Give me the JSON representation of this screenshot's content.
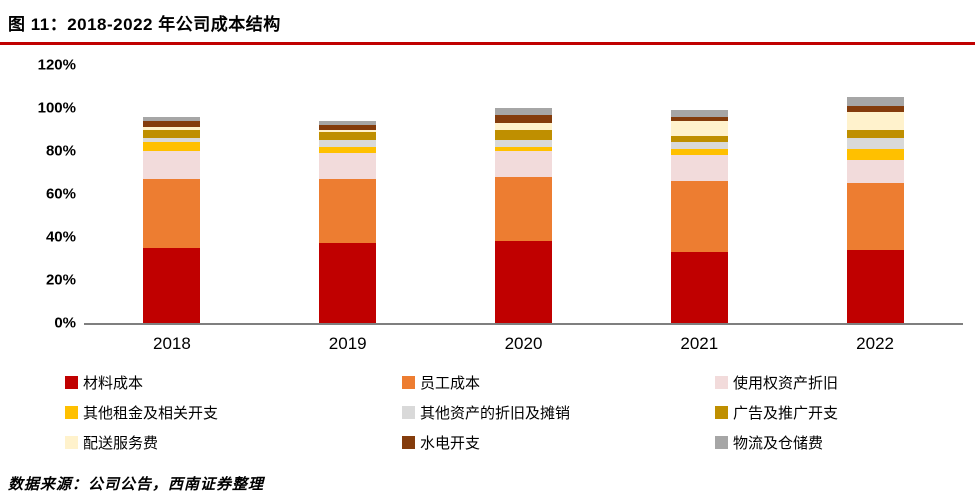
{
  "header": {
    "title": "图 11：2018-2022 年公司成本结构",
    "accent_color": "#c00000"
  },
  "footer": {
    "source": "数据来源：公司公告，西南证券整理"
  },
  "chart_data": {
    "type": "bar",
    "stacked": true,
    "title": "2018-2022 年公司成本结构",
    "categories": [
      "2018",
      "2019",
      "2020",
      "2021",
      "2022"
    ],
    "series": [
      {
        "name": "材料成本",
        "color": "#c00000",
        "values": [
          35,
          37,
          38,
          33,
          34
        ]
      },
      {
        "name": "员工成本",
        "color": "#ed7d31",
        "values": [
          32,
          30,
          30,
          33,
          31
        ]
      },
      {
        "name": "使用权资产折旧",
        "color": "#f2dbdb",
        "values": [
          13,
          12,
          12,
          12,
          11
        ]
      },
      {
        "name": "其他租金及相关开支",
        "color": "#ffc000",
        "values": [
          4,
          3,
          2,
          3,
          5
        ]
      },
      {
        "name": "其他资产的折旧及摊销",
        "color": "#d9d9d9",
        "values": [
          2,
          3,
          3,
          3,
          5
        ]
      },
      {
        "name": "广告及推广开支",
        "color": "#bf8f00",
        "values": [
          4,
          4,
          5,
          3,
          4
        ]
      },
      {
        "name": "配送服务费",
        "color": "#fff2cc",
        "values": [
          1,
          1,
          3,
          7,
          8
        ]
      },
      {
        "name": "水电开支",
        "color": "#843c0c",
        "values": [
          3,
          2,
          4,
          2,
          3
        ]
      },
      {
        "name": "物流及仓储费",
        "color": "#a6a6a6",
        "values": [
          2,
          2,
          3,
          3,
          4
        ]
      }
    ],
    "xlabel": "",
    "ylabel": "",
    "ylim": [
      0,
      120
    ],
    "ytick_step": 20,
    "ytick_labels": [
      "0%",
      "20%",
      "40%",
      "60%",
      "80%",
      "100%",
      "120%"
    ],
    "grid": false,
    "legend_position": "bottom",
    "legend_columns": 3
  }
}
